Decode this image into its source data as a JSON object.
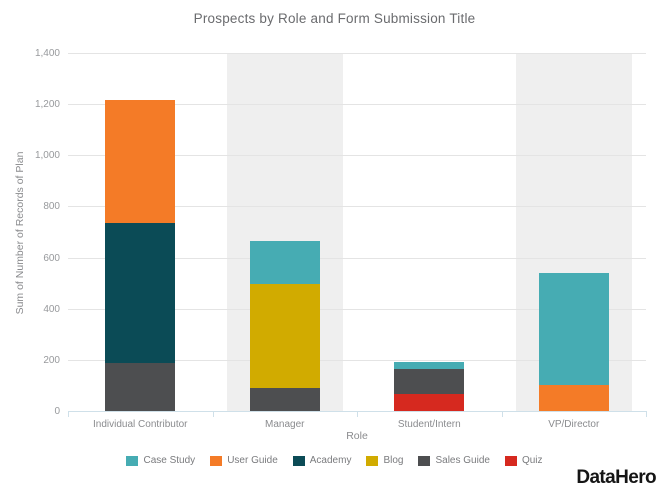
{
  "title": "Prospects by Role and Form Submission Title",
  "branding": {
    "logo_text": "DataHero"
  },
  "colors": {
    "band": "#EFEFEF",
    "gridline": "#E4E4E4",
    "axis_line": "#CFE0E9",
    "title_text": "#6A6B6E",
    "axis_title_text": "#8A8B8E",
    "tick_text": "#97999C",
    "legend_text": "#7A7B7E"
  },
  "chart_data": {
    "type": "bar",
    "stacked": true,
    "title": "Prospects by Role and Form Submission Title",
    "xlabel": "Role",
    "ylabel": "Sum of Number of Records of Plan",
    "categories": [
      "Individual Contributor",
      "Manager",
      "Student/Intern",
      "VP/Director"
    ],
    "ylim": [
      0,
      1400
    ],
    "ytick_step": 200,
    "ytick_labels": [
      "0",
      "200",
      "400",
      "600",
      "800",
      "1,000",
      "1,200",
      "1,400"
    ],
    "grid": true,
    "legend_position": "bottom",
    "series": [
      {
        "name": "Case Study",
        "color": "#46ACB3",
        "values": [
          0,
          170,
          25,
          440
        ]
      },
      {
        "name": "User Guide",
        "color": "#F47B27",
        "values": [
          480,
          0,
          0,
          105
        ]
      },
      {
        "name": "Academy",
        "color": "#0B4B56",
        "values": [
          550,
          0,
          0,
          0
        ]
      },
      {
        "name": "Blog",
        "color": "#D1AB00",
        "values": [
          0,
          405,
          0,
          0
        ]
      },
      {
        "name": "Sales Guide",
        "color": "#4D4E50",
        "values": [
          190,
          95,
          100,
          0
        ]
      },
      {
        "name": "Quiz",
        "color": "#D6291F",
        "values": [
          0,
          0,
          70,
          0
        ]
      }
    ],
    "stack_order_bottom_to_top": [
      "Quiz",
      "Sales Guide",
      "Blog",
      "Academy",
      "User Guide",
      "Case Study"
    ],
    "category_totals": [
      1220,
      670,
      195,
      545
    ],
    "shaded_category_indices": [
      1,
      3
    ]
  }
}
